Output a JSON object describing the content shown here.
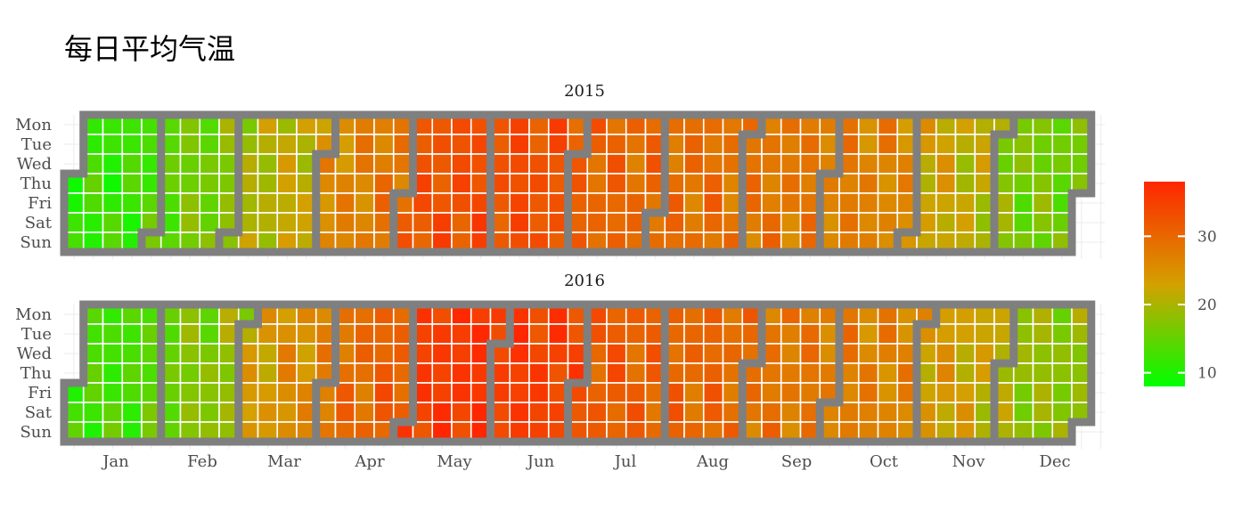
{
  "chart_data": {
    "type": "heatmap",
    "title": "每日平均气温",
    "facets": [
      "2015",
      "2016"
    ],
    "weekdays": [
      "Mon",
      "Tue",
      "Wed",
      "Thu",
      "Fri",
      "Sat",
      "Sun"
    ],
    "months": [
      "Jan",
      "Feb",
      "Mar",
      "Apr",
      "May",
      "Jun",
      "Jul",
      "Aug",
      "Sep",
      "Oct",
      "Nov",
      "Dec"
    ],
    "legend": {
      "ticks": [
        10,
        20,
        30
      ],
      "min": 8,
      "max": 38,
      "color_low": "#00ff00",
      "color_mid": "#d4a000",
      "color_high": "#ff2600"
    },
    "border_color": "#7f7f7f",
    "grid_color": "#ebebeb",
    "monthly_temperature_approx": {
      "2015": [
        12,
        16,
        21,
        27,
        33,
        33,
        30,
        29,
        28,
        27,
        22,
        16
      ],
      "2016": [
        13,
        17,
        25,
        30,
        36,
        35,
        31,
        30,
        28,
        27,
        23,
        18
      ]
    }
  }
}
